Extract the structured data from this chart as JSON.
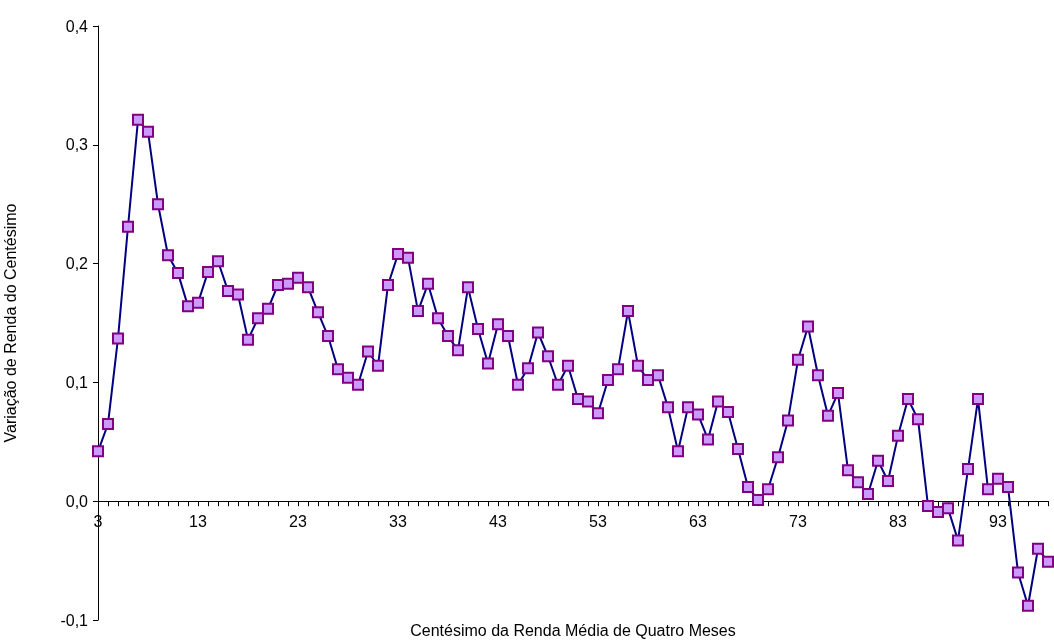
{
  "chart_data": {
    "type": "line",
    "xlabel": "Centésimo da Renda Média de Quatro Meses",
    "ylabel": "Variação de Renda do Centésimo",
    "categories": [
      "3",
      null,
      null,
      null,
      null,
      null,
      null,
      null,
      null,
      null,
      "13",
      null,
      null,
      null,
      null,
      null,
      null,
      null,
      null,
      null,
      "23",
      null,
      null,
      null,
      null,
      null,
      null,
      null,
      null,
      null,
      "33",
      null,
      null,
      null,
      null,
      null,
      null,
      null,
      null,
      null,
      "43",
      null,
      null,
      null,
      null,
      null,
      null,
      null,
      null,
      null,
      "53",
      null,
      null,
      null,
      null,
      null,
      null,
      null,
      null,
      null,
      "63",
      null,
      null,
      null,
      null,
      null,
      null,
      null,
      null,
      null,
      "73",
      null,
      null,
      null,
      null,
      null,
      null,
      null,
      null,
      null,
      "83",
      null,
      null,
      null,
      null,
      null,
      null,
      null,
      null,
      null,
      "93",
      null,
      null,
      null,
      null,
      null
    ],
    "series": [
      {
        "color": "#cc99ff",
        "values": [
          0.042,
          0.065,
          0.137,
          0.231,
          0.321,
          0.311,
          0.25,
          0.207,
          0.192,
          0.164,
          0.167,
          0.193,
          0.202,
          0.177,
          0.174,
          0.136,
          0.154,
          0.162,
          0.182,
          0.183,
          0.188,
          0.18,
          0.159,
          0.139,
          0.111,
          0.104,
          0.098,
          0.126,
          0.114,
          0.182,
          0.208,
          0.205,
          0.16,
          0.183,
          0.154,
          0.139,
          0.127,
          0.18,
          0.145,
          0.116,
          0.149,
          0.139,
          0.098,
          0.112,
          0.142,
          0.122,
          0.098,
          0.114,
          0.086,
          0.084,
          0.074,
          0.102,
          0.111,
          0.16,
          0.114,
          0.102,
          0.106,
          0.079,
          0.042,
          0.079,
          0.073,
          0.052,
          0.084,
          0.075,
          0.044,
          0.012,
          0.001,
          0.01,
          0.037,
          0.068,
          0.119,
          0.147,
          0.106,
          0.072,
          0.091,
          0.026,
          0.016,
          0.006,
          0.034,
          0.017,
          0.055,
          0.086,
          0.069,
          -0.004,
          -0.009,
          -0.006,
          -0.033,
          0.027,
          0.086,
          0.01,
          0.019,
          0.012,
          -0.06,
          -0.088,
          -0.04,
          -0.051
        ]
      }
    ],
    "ylim": [
      -0.1,
      0.4
    ],
    "yticks": [
      {
        "value": -0.1,
        "label": "-0,1"
      },
      {
        "value": 0,
        "label": "0,0"
      },
      {
        "value": 0.1,
        "label": "0,1"
      },
      {
        "value": 0.2,
        "label": "0,2"
      },
      {
        "value": 0.3,
        "label": "0,3"
      },
      {
        "value": 0.4,
        "label": "0,4"
      }
    ],
    "marker": "square",
    "line_style": "solid"
  }
}
